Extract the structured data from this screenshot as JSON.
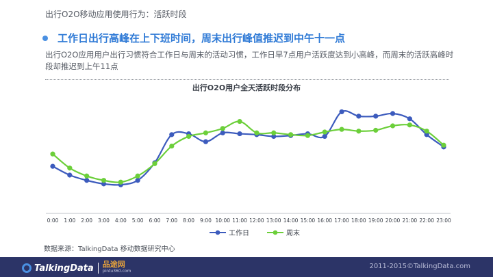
{
  "header": {
    "section_title": "出行O2O移动应用使用行为：活跃时段",
    "headline": "工作日出行高峰在上下班时间，周末出行峰值推迟到中午十一点",
    "description": "出行O2O应用用户出行习惯符合工作日与周末的活动习惯，工作日早7点用户活跃度达到小高峰，而周末的活跃高峰时段却推迟到上午11点"
  },
  "source": "数据来源：TalkingData 移动数据研究中心",
  "footer": {
    "logo_text": "TalkingData",
    "brand2_cn": "品途网",
    "brand2_url": "pintu360.com",
    "copyright": "2011-2015©TalkingData.com"
  },
  "colors": {
    "accent": "#2f7ad6",
    "weekday": "#3c5bbd",
    "weekend": "#6ccf3a",
    "footer_bg": "#2c3467"
  },
  "chart_data": {
    "type": "line",
    "title": "出行O2O用户全天活跃时段分布",
    "categories": [
      "0:00",
      "1:00",
      "2:00",
      "3:00",
      "4:00",
      "5:00",
      "6:00",
      "7:00",
      "8:00",
      "9:00",
      "10:00",
      "11:00",
      "12:00",
      "13:00",
      "14:00",
      "15:00",
      "16:00",
      "17:00",
      "18:00",
      "19:00",
      "20:00",
      "21:00",
      "22:00",
      "23:00"
    ],
    "series": [
      {
        "name": "工作日",
        "color": "#3c5bbd",
        "values": [
          2.6,
          2.1,
          1.8,
          1.6,
          1.55,
          1.8,
          2.8,
          4.4,
          4.45,
          4.0,
          4.5,
          4.45,
          4.4,
          4.3,
          4.35,
          4.45,
          4.3,
          5.7,
          5.45,
          5.45,
          5.6,
          5.3,
          4.4,
          3.7
        ]
      },
      {
        "name": "周末",
        "color": "#6ccf3a",
        "values": [
          3.3,
          2.5,
          2.05,
          1.8,
          1.7,
          2.05,
          2.75,
          3.75,
          4.3,
          4.5,
          4.75,
          5.15,
          4.5,
          4.5,
          4.4,
          4.35,
          4.55,
          4.7,
          4.6,
          4.65,
          4.9,
          4.95,
          4.6,
          3.8
        ]
      }
    ],
    "ylim": [
      0,
      7
    ],
    "grid": false,
    "legend": "bottom-center"
  }
}
